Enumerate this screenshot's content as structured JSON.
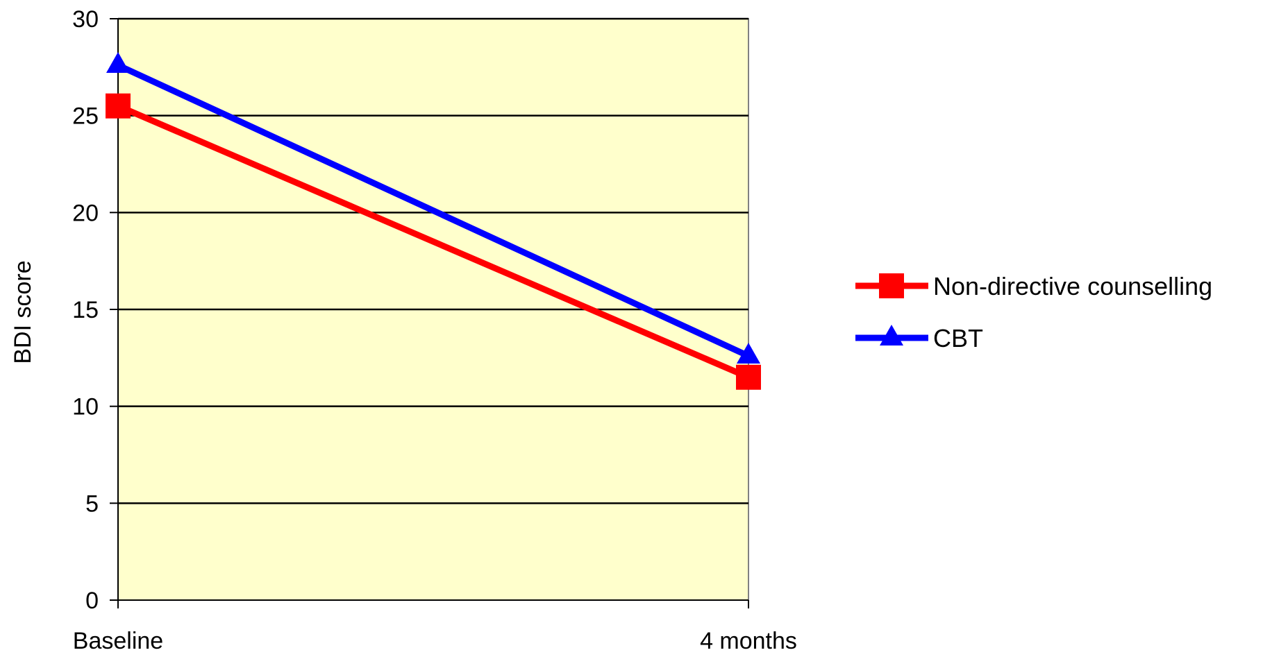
{
  "chart_data": {
    "type": "line",
    "title": "",
    "xlabel": "",
    "ylabel": "BDI score",
    "categories": [
      "Baseline",
      "4 months"
    ],
    "ylim": [
      0,
      30
    ],
    "yticks": [
      0,
      5,
      10,
      15,
      20,
      25,
      30
    ],
    "grid": true,
    "legend_position": "right",
    "plot_background": "#FFFFCC",
    "series": [
      {
        "name": "Non-directive counselling",
        "values": [
          25.5,
          11.5
        ],
        "color": "#FF0000",
        "marker": "square"
      },
      {
        "name": "CBT",
        "values": [
          27.6,
          12.6
        ],
        "color": "#0000FF",
        "marker": "triangle"
      }
    ]
  }
}
